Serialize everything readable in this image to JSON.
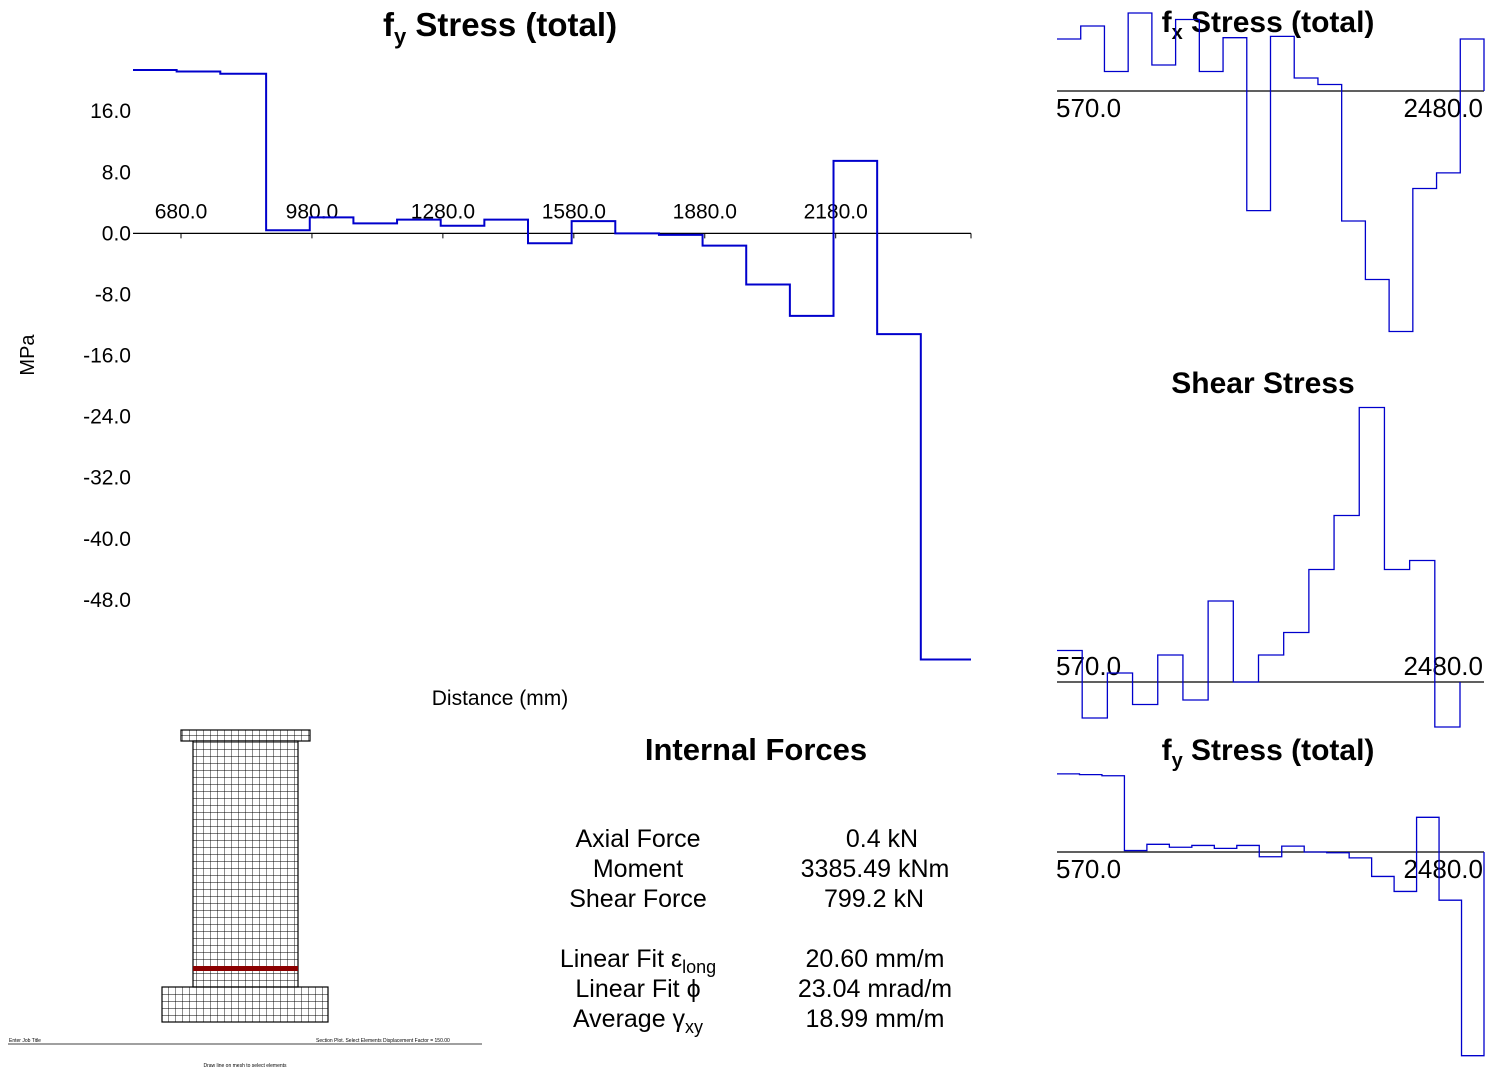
{
  "main_plot": {
    "title": "f",
    "title_sub": "y",
    "title_rest": " Stress (total)",
    "ylabel": "MPa",
    "xlabel": "Distance (mm)"
  },
  "fx_plot": {
    "title": "f",
    "title_sub": "x",
    "title_rest": " Stress (total)",
    "label_left": "570.0",
    "label_right": "2480.0"
  },
  "shear_plot": {
    "title": "Shear Stress",
    "label_left": "570.0",
    "label_right": "2480.0"
  },
  "fy_small_plot": {
    "title": "f",
    "title_sub": "y",
    "title_rest": " Stress (total)",
    "label_left": "570.0",
    "label_right": "2480.0"
  },
  "internal_forces": {
    "title": "Internal Forces",
    "rows": [
      {
        "label": "Axial Force",
        "value": "0.4 kN"
      },
      {
        "label": "Moment",
        "value": "3385.49 kNm"
      },
      {
        "label": "Shear Force",
        "value": "799.2 kN"
      }
    ],
    "fit_rows": [
      {
        "label": "Linear Fit ε",
        "sub": "long",
        "value": "20.60 mm/m"
      },
      {
        "label": "Linear Fit ϕ",
        "sub": "",
        "value": "23.04 mrad/m"
      },
      {
        "label": "Average γ",
        "sub": "xy",
        "value": "18.99 mm/m"
      }
    ]
  },
  "footer": {
    "job_title": "Enter Job Title",
    "status": "Section Plot.  Select Elements    Displacement Factor = 150.00",
    "hint": "Draw line on mesh to select elements"
  },
  "colors": {
    "series": "#0000cc",
    "axis": "#000000",
    "mesh": "#000000",
    "selected_row": "#8b0000"
  },
  "chart_data": [
    {
      "type": "line",
      "step": true,
      "x_ticks": [
        680,
        980,
        1280,
        1580,
        1880,
        2180
      ],
      "x_tick_labels": [
        "680.0",
        "980.0",
        "1280.0",
        "1580.0",
        "1880.0",
        "2180.0"
      ],
      "y_ticks": [
        16,
        8,
        0,
        -8,
        -16,
        -24,
        -32,
        -40,
        -48
      ],
      "y_tick_labels": [
        "16.0",
        "8.0",
        "0.0",
        "-8.0",
        "-16.0",
        "-24.0",
        "-32.0",
        "-40.0",
        "-48.0"
      ],
      "xlim": [
        570,
        2490
      ],
      "ylim": [
        -56,
        21
      ],
      "bin_edges": [
        570,
        670,
        770,
        875,
        975,
        1075,
        1175,
        1275,
        1375,
        1475,
        1575,
        1675,
        1775,
        1875,
        1975,
        2075,
        2175,
        2275,
        2375,
        2490
      ],
      "values": [
        21.4,
        21.2,
        20.9,
        0.4,
        2.1,
        1.3,
        1.8,
        1.0,
        1.8,
        -1.3,
        1.6,
        0.0,
        -0.2,
        -1.6,
        -6.7,
        -10.8,
        9.5,
        -13.2,
        -55.8
      ]
    },
    {
      "type": "line",
      "step": true,
      "xlim": [
        570,
        2480
      ],
      "values": [
        0.4,
        0.5,
        0.15,
        0.6,
        0.2,
        0.55,
        0.15,
        0.41,
        -0.92,
        0.42,
        0.1,
        0.05,
        -1.0,
        -1.45,
        -1.85,
        -0.75,
        -0.63,
        0.4
      ]
    },
    {
      "type": "line",
      "step": true,
      "xlim": [
        570,
        2480
      ],
      "values": [
        0.07,
        -0.08,
        0.02,
        -0.05,
        0.06,
        -0.04,
        0.18,
        0.0,
        0.06,
        0.11,
        0.25,
        0.37,
        0.61,
        0.25,
        0.27,
        -0.1
      ]
    },
    {
      "type": "line",
      "step": true,
      "xlim": [
        570,
        2480
      ],
      "values": [
        21.4,
        21.2,
        20.9,
        0.4,
        2.1,
        1.3,
        1.8,
        1.0,
        1.8,
        -1.3,
        1.6,
        0.0,
        -0.2,
        -1.6,
        -6.7,
        -10.8,
        9.5,
        -13.2,
        -55.8
      ]
    }
  ]
}
